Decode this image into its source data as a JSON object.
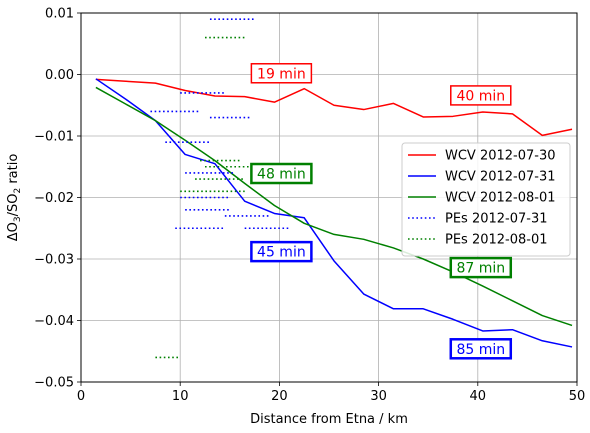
{
  "chart_data": {
    "type": "line",
    "xlabel": "Distance from Etna / km",
    "ylabel_parts": [
      "ΔO",
      "3",
      "/SO",
      "2",
      " ratio"
    ],
    "xlim": [
      0,
      50
    ],
    "ylim": [
      -0.05,
      0.01
    ],
    "xticks": [
      0,
      10,
      20,
      30,
      40,
      50
    ],
    "xtick_labels": [
      "0",
      "10",
      "20",
      "30",
      "40",
      "50"
    ],
    "yticks": [
      -0.05,
      -0.04,
      -0.03,
      -0.02,
      -0.01,
      0.0,
      0.01
    ],
    "ytick_labels": [
      "−0.05",
      "−0.04",
      "−0.03",
      "−0.02",
      "−0.01",
      "0.00",
      "0.01"
    ],
    "grid": true,
    "legend_position": "center-right",
    "colors": {
      "red": "#ff0000",
      "blue": "#0000ff",
      "green": "#008000"
    },
    "series": [
      {
        "name": "WCV 2012-07-30",
        "color": "#ff0000",
        "style": "solid",
        "x": [
          1.5,
          4.5,
          7.5,
          10.5,
          13.5,
          16.5,
          19.5,
          22.5,
          25.5,
          28.5,
          31.5,
          34.5,
          37.5,
          40.5,
          43.5,
          46.5,
          49.5
        ],
        "y": [
          -0.0008,
          -0.0011,
          -0.0014,
          -0.0026,
          -0.0035,
          -0.0036,
          -0.0045,
          -0.0023,
          -0.005,
          -0.0057,
          -0.0047,
          -0.0069,
          -0.0068,
          -0.0061,
          -0.0064,
          -0.0099,
          -0.0089
        ]
      },
      {
        "name": "WCV 2012-07-31",
        "color": "#0000ff",
        "style": "solid",
        "x": [
          1.5,
          4.5,
          7.5,
          10.5,
          13.5,
          16.5,
          19.5,
          22.5,
          25.5,
          28.5,
          31.5,
          34.5,
          37.5,
          40.5,
          43.5,
          46.5,
          49.5
        ],
        "y": [
          -0.0007,
          -0.004,
          -0.0075,
          -0.013,
          -0.0145,
          -0.0206,
          -0.0226,
          -0.0233,
          -0.0303,
          -0.0357,
          -0.0381,
          -0.0381,
          -0.0398,
          -0.0417,
          -0.0415,
          -0.0433,
          -0.0443
        ]
      },
      {
        "name": "WCV 2012-08-01",
        "color": "#008000",
        "style": "solid",
        "x": [
          1.5,
          4.5,
          7.5,
          10.5,
          13.5,
          16.5,
          19.5,
          22.5,
          25.5,
          28.5,
          31.5,
          34.5,
          37.5,
          40.5,
          43.5,
          46.5,
          49.5
        ],
        "y": [
          -0.0021,
          -0.0048,
          -0.0075,
          -0.0107,
          -0.014,
          -0.0177,
          -0.0213,
          -0.0242,
          -0.026,
          -0.0268,
          -0.0282,
          -0.03,
          -0.0321,
          -0.0344,
          -0.0368,
          -0.0392,
          -0.0408
        ]
      }
    ],
    "pe_series": [
      {
        "name": "PEs 2012-07-31",
        "color": "#0000ff",
        "style": "dotted",
        "segments": [
          {
            "x": [
              13.0,
              17.5
            ],
            "y": 0.009
          },
          {
            "x": [
              10.0,
              14.5
            ],
            "y": -0.003
          },
          {
            "x": [
              7.0,
              12.0
            ],
            "y": -0.006
          },
          {
            "x": [
              13.0,
              17.0
            ],
            "y": -0.007
          },
          {
            "x": [
              8.5,
              13.0
            ],
            "y": -0.011
          },
          {
            "x": [
              10.5,
              15.5
            ],
            "y": -0.016
          },
          {
            "x": [
              10.0,
              15.0
            ],
            "y": -0.02
          },
          {
            "x": [
              10.5,
              15.0
            ],
            "y": -0.022
          },
          {
            "x": [
              14.5,
              19.0
            ],
            "y": -0.023
          },
          {
            "x": [
              9.5,
              14.5
            ],
            "y": -0.025
          },
          {
            "x": [
              16.5,
              21.0
            ],
            "y": -0.025
          }
        ]
      },
      {
        "name": "PEs 2012-08-01",
        "color": "#008000",
        "style": "dotted",
        "segments": [
          {
            "x": [
              12.5,
              16.5
            ],
            "y": 0.006
          },
          {
            "x": [
              12.0,
              16.0
            ],
            "y": -0.014
          },
          {
            "x": [
              12.5,
              17.5
            ],
            "y": -0.015
          },
          {
            "x": [
              11.5,
              16.5
            ],
            "y": -0.017
          },
          {
            "x": [
              10.0,
              16.5
            ],
            "y": -0.019
          },
          {
            "x": [
              7.5,
              10.0
            ],
            "y": -0.046
          }
        ]
      }
    ],
    "annotations": [
      {
        "text": "19 min",
        "color": "#ff0000",
        "x": 20.2,
        "y": 0.0002,
        "lw": 1.5
      },
      {
        "text": "40 min",
        "color": "#ff0000",
        "x": 40.3,
        "y": -0.0034,
        "lw": 1.5
      },
      {
        "text": "48 min",
        "color": "#008000",
        "x": 20.2,
        "y": -0.0161,
        "lw": 2.5
      },
      {
        "text": "45 min",
        "color": "#0000ff",
        "x": 20.2,
        "y": -0.0288,
        "lw": 2.5
      },
      {
        "text": "87 min",
        "color": "#008000",
        "x": 40.3,
        "y": -0.0314,
        "lw": 2.5
      },
      {
        "text": "85 min",
        "color": "#0000ff",
        "x": 40.3,
        "y": -0.0446,
        "lw": 2.5
      }
    ]
  }
}
